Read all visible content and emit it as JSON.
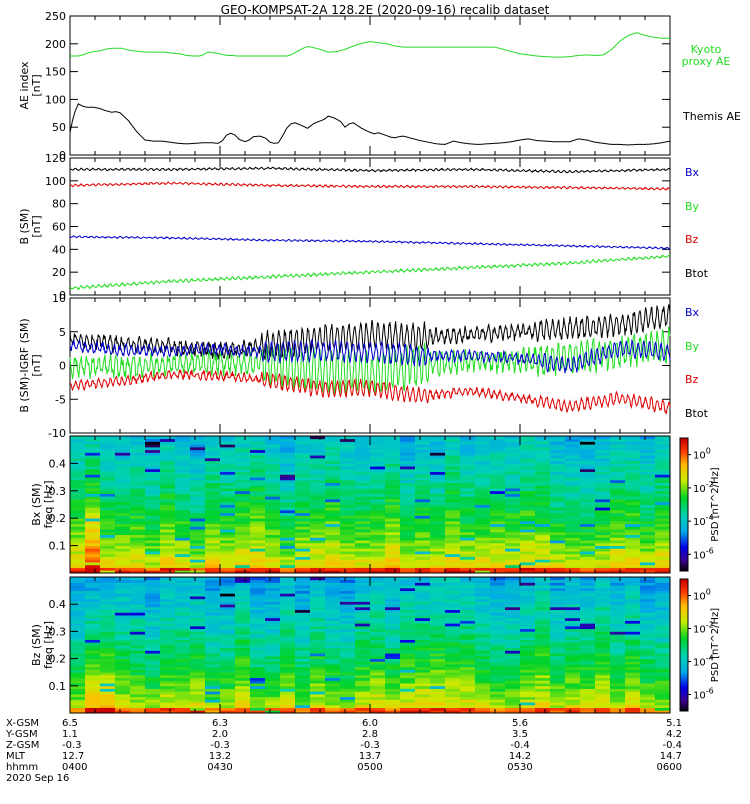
{
  "title": "GEO-KOMPSAT-2A 128.2E (2020-09-16) recalib dataset",
  "ephemeris": {
    "rows": [
      {
        "label": "X-GSM",
        "values": [
          "6.5",
          "6.3",
          "6.0",
          "5.6",
          "5.1"
        ]
      },
      {
        "label": "Y-GSM",
        "values": [
          "1.1",
          "2.0",
          "2.8",
          "3.5",
          "4.2"
        ]
      },
      {
        "label": "Z-GSM",
        "values": [
          "-0.3",
          "-0.3",
          "-0.3",
          "-0.4",
          "-0.4"
        ]
      },
      {
        "label": "MLT",
        "values": [
          "12.7",
          "13.2",
          "13.7",
          "14.2",
          "14.7"
        ]
      },
      {
        "label": "hhmm",
        "values": [
          "0400",
          "0430",
          "0500",
          "0530",
          "0600"
        ]
      }
    ],
    "date": "2020 Sep 16"
  },
  "chart_data": [
    {
      "type": "line",
      "panel": "ae",
      "ylabel": "AE index [nT]",
      "ylim": [
        0,
        250
      ],
      "yticks": [
        "0",
        "50",
        "100",
        "150",
        "200",
        "250"
      ],
      "x_time_range": [
        "0400",
        "0600"
      ],
      "series": [
        {
          "name": "Kyoto proxy AE",
          "color": "#22dd22",
          "x": [
            0,
            5,
            10,
            15,
            20,
            28,
            35,
            42,
            50,
            57,
            62,
            70,
            78,
            85,
            90,
            100,
            108,
            113,
            118,
            125,
            132,
            140,
            148,
            155,
            158,
            162,
            165,
            168,
            172,
            176,
            180,
            185,
            190,
            195,
            200,
            205,
            210,
            215,
            220,
            225,
            230,
            235,
            240,
            245,
            250,
            255,
            260,
            265,
            270,
            275,
            280,
            285,
            290,
            300,
            310,
            320,
            330,
            340,
            350,
            360,
            370,
            380,
            390,
            400,
            410,
            420,
            430,
            440,
            450,
            460,
            470,
            480,
            490,
            500,
            510,
            520,
            530,
            540,
            550,
            560,
            570,
            580,
            590,
            600,
            610,
            620,
            630,
            640,
            650,
            660,
            670,
            680,
            690,
            700,
            710,
            720
          ],
          "y": [
            178,
            178,
            178,
            180,
            183,
            186,
            187,
            190,
            192,
            192,
            192,
            189,
            187,
            186,
            185,
            185,
            185,
            185,
            184,
            183,
            182,
            179,
            178,
            178,
            179,
            182,
            185,
            185,
            184,
            183,
            182,
            180,
            179,
            179,
            178,
            178,
            178,
            178,
            178,
            178,
            178,
            178,
            178,
            178,
            178,
            178,
            178,
            180,
            184,
            188,
            192,
            195,
            194,
            190,
            185,
            186,
            190,
            196,
            201,
            204,
            202,
            200,
            196,
            194,
            194,
            194,
            194,
            194,
            194,
            194,
            194,
            194,
            194,
            194,
            194,
            190,
            186,
            182,
            180,
            178,
            177,
            176,
            176,
            177,
            179,
            180,
            179,
            180,
            190,
            205,
            215,
            220,
            215,
            212,
            210,
            210
          ]
        },
        {
          "name": "Themis AE",
          "color": "#000000",
          "x": [
            0,
            3,
            6,
            10,
            15,
            20,
            28,
            35,
            42,
            50,
            55,
            60,
            70,
            80,
            90,
            100,
            110,
            120,
            130,
            140,
            150,
            160,
            170,
            178,
            183,
            188,
            193,
            198,
            203,
            210,
            215,
            220,
            228,
            235,
            240,
            245,
            250,
            255,
            260,
            265,
            270,
            278,
            285,
            292,
            298,
            305,
            310,
            318,
            325,
            330,
            335,
            340,
            350,
            358,
            365,
            370,
            378,
            385,
            390,
            395,
            400,
            410,
            420,
            430,
            440,
            450,
            455,
            460,
            470,
            480,
            490,
            500,
            510,
            520,
            530,
            540,
            550,
            560,
            570,
            580,
            590,
            600,
            610,
            620,
            630,
            640,
            650,
            660,
            670,
            680,
            690,
            700,
            710,
            720
          ],
          "y": [
            40,
            62,
            78,
            92,
            88,
            86,
            86,
            84,
            80,
            77,
            78,
            76,
            62,
            42,
            27,
            25,
            25,
            23,
            21,
            20,
            21,
            22,
            22,
            21,
            26,
            36,
            39,
            36,
            28,
            24,
            27,
            33,
            34,
            30,
            23,
            21,
            22,
            34,
            48,
            56,
            58,
            53,
            48,
            56,
            60,
            64,
            70,
            66,
            60,
            50,
            56,
            58,
            48,
            42,
            38,
            40,
            36,
            32,
            31,
            33,
            34,
            30,
            26,
            23,
            20,
            19,
            22,
            25,
            22,
            20,
            19,
            20,
            21,
            22,
            24,
            27,
            29,
            26,
            25,
            24,
            24,
            24,
            29,
            27,
            23,
            21,
            19,
            19,
            18,
            19,
            19,
            20,
            22,
            25
          ]
        }
      ]
    },
    {
      "type": "line",
      "panel": "b_sm",
      "ylabel": "B (SM) [nT]",
      "ylim": [
        0,
        120
      ],
      "yticks": [
        "0",
        "20",
        "40",
        "60",
        "80",
        "100",
        "120"
      ],
      "series": [
        {
          "name": "Bx",
          "color": "#000000",
          "x": [
            0,
            120,
            240,
            360,
            480,
            600,
            720
          ],
          "y": [
            110,
            110,
            111,
            109,
            110,
            108,
            110
          ],
          "noise": 1.0
        },
        {
          "name": "By",
          "color": "#22dd22",
          "x": [
            0,
            120,
            240,
            360,
            480,
            600,
            720
          ],
          "y": [
            6,
            12,
            16,
            20,
            24,
            28,
            34
          ],
          "noise": 1.4
        },
        {
          "name": "Bz",
          "color": "#dd0000",
          "x": [
            0,
            120,
            240,
            360,
            480,
            600,
            720
          ],
          "y": [
            96,
            98,
            96,
            95,
            95,
            94,
            93
          ],
          "noise": 1.0
        },
        {
          "name": "Btot",
          "color": "#0000cc",
          "x": [
            0,
            120,
            240,
            360,
            480,
            600,
            720
          ],
          "y": [
            51,
            50,
            48,
            47,
            45,
            43,
            41
          ],
          "noise": 0.8
        }
      ]
    },
    {
      "type": "line",
      "panel": "b_minus_igrf",
      "ylabel": "B (SM)-IGRF (SM) [nT]",
      "ylim": [
        -10,
        10
      ],
      "yticks": [
        "-10",
        "-5",
        "0",
        "5",
        "10"
      ],
      "series": [
        {
          "name": "Bx",
          "color": "#000000",
          "x": [
            0,
            60,
            120,
            180,
            240,
            300,
            360,
            420,
            480,
            540,
            600,
            660,
            720
          ],
          "y": [
            4,
            3.2,
            2.8,
            2.2,
            3,
            4,
            4.5,
            4.2,
            4.6,
            5,
            5.5,
            6,
            7.5
          ],
          "noise": 1.2
        },
        {
          "name": "By",
          "color": "#22dd22",
          "x": [
            0,
            60,
            120,
            180,
            240,
            300,
            360,
            420,
            480,
            540,
            600,
            660,
            720
          ],
          "y": [
            0,
            -0.3,
            0.2,
            0.5,
            0.2,
            -0.8,
            -1.2,
            0,
            0.6,
            0.8,
            1.2,
            2,
            3
          ],
          "noise": 1.8
        },
        {
          "name": "Bz",
          "color": "#dd0000",
          "x": [
            0,
            60,
            120,
            180,
            240,
            300,
            360,
            420,
            480,
            540,
            600,
            660,
            720
          ],
          "y": [
            -3,
            -2.4,
            -1.3,
            -1.5,
            -2.2,
            -3.5,
            -3.3,
            -4.5,
            -3.8,
            -4.8,
            -6,
            -4.8,
            -6.3
          ],
          "noise": 0.7
        },
        {
          "name": "Btot",
          "color": "#0000cc",
          "x": [
            0,
            60,
            120,
            180,
            240,
            300,
            360,
            420,
            480,
            540,
            600,
            660,
            720
          ],
          "y": [
            3,
            2.3,
            2.2,
            2.4,
            2,
            2.2,
            2,
            1.4,
            1.5,
            1,
            0,
            2.5,
            2
          ],
          "noise": 0.9
        }
      ]
    },
    {
      "type": "heatmap",
      "panel": "bx_spectrogram",
      "ylabel": "Bx (SM) freq [Hz]",
      "ylim": [
        0,
        0.5
      ],
      "yticks": [
        "0.1",
        "0.2",
        "0.3",
        "0.4"
      ],
      "colorbar": {
        "label": "PSD [nT^2/Hz]",
        "ticks": [
          "10^0",
          "10^-2",
          "10^-4",
          "10^-6"
        ],
        "log_range": [
          -7,
          1
        ]
      },
      "time_bins": 40,
      "freq_bins": 50,
      "base_log_psd_low_freq": -0.5,
      "base_log_psd_high_freq": -4.2,
      "enhanced_interval": [
        "0425",
        "0440"
      ]
    },
    {
      "type": "heatmap",
      "panel": "bz_spectrogram",
      "ylabel": "Bz (SM) freq [Hz]",
      "ylim": [
        0,
        0.5
      ],
      "yticks": [
        "0.1",
        "0.2",
        "0.3",
        "0.4"
      ],
      "colorbar": {
        "label": "PSD [nT^2/Hz]",
        "ticks": [
          "10^0",
          "10^-2",
          "10^-4",
          "10^-6"
        ],
        "log_range": [
          -7,
          1
        ]
      },
      "time_bins": 40,
      "freq_bins": 50,
      "base_log_psd_low_freq": -0.8,
      "base_log_psd_high_freq": -4.4,
      "enhanced_interval": [
        "0420",
        "0445"
      ]
    }
  ]
}
